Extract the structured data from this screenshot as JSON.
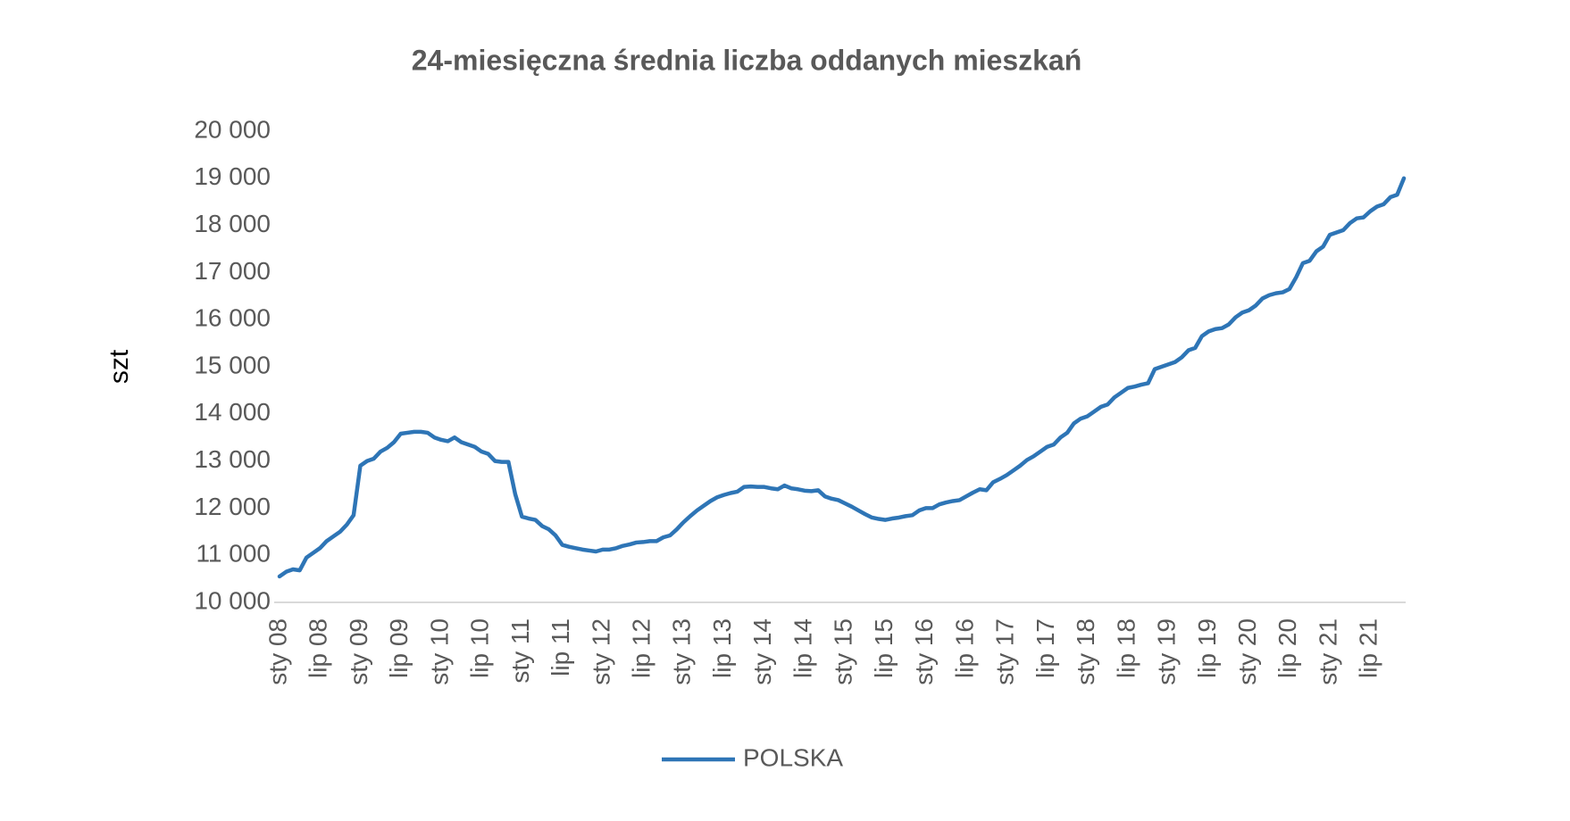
{
  "chart_data": {
    "type": "line",
    "title": "24-miesięczna średnia liczba oddanych mieszkań",
    "y_label": "szt",
    "categories": [
      "sty 08",
      null,
      null,
      null,
      null,
      null,
      "lip 08",
      null,
      null,
      null,
      null,
      null,
      "sty 09",
      null,
      null,
      null,
      null,
      null,
      "lip 09",
      null,
      null,
      null,
      null,
      null,
      "sty 10",
      null,
      null,
      null,
      null,
      null,
      "lip 10",
      null,
      null,
      null,
      null,
      null,
      "sty 11",
      null,
      null,
      null,
      null,
      null,
      "lip 11",
      null,
      null,
      null,
      null,
      null,
      "sty 12",
      null,
      null,
      null,
      null,
      null,
      "lip 12",
      null,
      null,
      null,
      null,
      null,
      "sty 13",
      null,
      null,
      null,
      null,
      null,
      "lip 13",
      null,
      null,
      null,
      null,
      null,
      "sty 14",
      null,
      null,
      null,
      null,
      null,
      "lip 14",
      null,
      null,
      null,
      null,
      null,
      "sty 15",
      null,
      null,
      null,
      null,
      null,
      "lip 15",
      null,
      null,
      null,
      null,
      null,
      "sty 16",
      null,
      null,
      null,
      null,
      null,
      "lip 16",
      null,
      null,
      null,
      null,
      null,
      "sty 17",
      null,
      null,
      null,
      null,
      null,
      "lip 17",
      null,
      null,
      null,
      null,
      null,
      "sty 18",
      null,
      null,
      null,
      null,
      null,
      "lip 18",
      null,
      null,
      null,
      null,
      null,
      "sty 19",
      null,
      null,
      null,
      null,
      null,
      "lip 19",
      null,
      null,
      null,
      null,
      null,
      "sty 20",
      null,
      null,
      null,
      null,
      null,
      "lip 20",
      null,
      null,
      null,
      null,
      null,
      "sty 21",
      null,
      null,
      null,
      null,
      null,
      "lip 21",
      null,
      null,
      null,
      null,
      null
    ],
    "series": [
      {
        "name": "POLSKA",
        "color": "#2e75b6",
        "values": [
          10550,
          10650,
          10700,
          10680,
          10950,
          11050,
          11150,
          11300,
          11400,
          11500,
          11650,
          11850,
          12900,
          13000,
          13050,
          13200,
          13280,
          13400,
          13580,
          13600,
          13620,
          13620,
          13600,
          13500,
          13450,
          13420,
          13500,
          13400,
          13350,
          13300,
          13200,
          13150,
          13000,
          12980,
          12980,
          12300,
          11820,
          11780,
          11750,
          11620,
          11550,
          11420,
          11220,
          11180,
          11150,
          11120,
          11100,
          11080,
          11120,
          11120,
          11150,
          11200,
          11230,
          11270,
          11280,
          11300,
          11300,
          11380,
          11420,
          11550,
          11700,
          11830,
          11950,
          12050,
          12150,
          12230,
          12280,
          12320,
          12350,
          12450,
          12460,
          12450,
          12450,
          12420,
          12400,
          12480,
          12420,
          12400,
          12370,
          12360,
          12380,
          12250,
          12200,
          12170,
          12100,
          12030,
          11950,
          11870,
          11800,
          11770,
          11750,
          11780,
          11800,
          11830,
          11850,
          11950,
          12000,
          12000,
          12080,
          12120,
          12150,
          12170,
          12250,
          12330,
          12400,
          12380,
          12550,
          12620,
          12700,
          12800,
          12900,
          13020,
          13100,
          13200,
          13300,
          13350,
          13500,
          13600,
          13800,
          13900,
          13950,
          14050,
          14150,
          14200,
          14350,
          14450,
          14550,
          14580,
          14620,
          14650,
          14950,
          15000,
          15050,
          15100,
          15200,
          15350,
          15400,
          15650,
          15750,
          15800,
          15820,
          15900,
          16050,
          16150,
          16200,
          16300,
          16450,
          16520,
          16560,
          16580,
          16650,
          16900,
          17200,
          17250,
          17450,
          17550,
          17800,
          17850,
          17900,
          18050,
          18150,
          18170,
          18300,
          18400,
          18450,
          18600,
          18650,
          19000
        ]
      }
    ],
    "ylim": [
      10000,
      20000
    ],
    "yticks": [
      {
        "value": 10000,
        "label": "10 000"
      },
      {
        "value": 11000,
        "label": "11 000"
      },
      {
        "value": 12000,
        "label": "12 000"
      },
      {
        "value": 13000,
        "label": "13 000"
      },
      {
        "value": 14000,
        "label": "14 000"
      },
      {
        "value": 15000,
        "label": "15 000"
      },
      {
        "value": 16000,
        "label": "16 000"
      },
      {
        "value": 17000,
        "label": "17 000"
      },
      {
        "value": 18000,
        "label": "18 000"
      },
      {
        "value": 19000,
        "label": "19 000"
      },
      {
        "value": 20000,
        "label": "20 000"
      }
    ],
    "grid": false,
    "legend": "bottom"
  }
}
